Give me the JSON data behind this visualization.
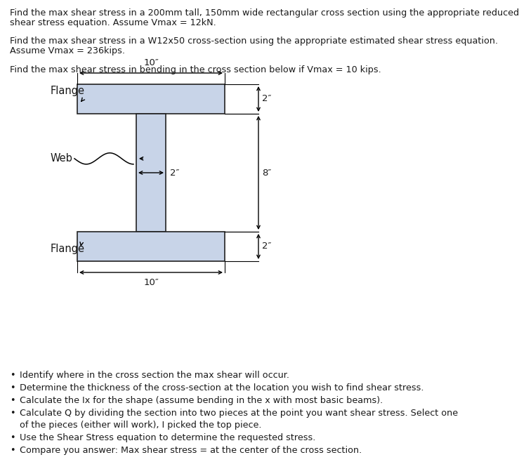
{
  "title_text1": "Find the max shear stress in a 200mm tall, 150mm wide rectangular cross section using the appropriate reduced",
  "title_text2": "shear stress equation. Assume Vmax = 12kN.",
  "para2_text1": "Find the max shear stress in a W12x50 cross-section using the appropriate estimated shear stress equation.",
  "para2_text2": "Assume Vmax = 236kips.",
  "para3_text": "Find the max shear stress in bending in the cross section below if Vmax = 10 kips.",
  "bullet_points": [
    "Identify where in the cross section the max shear will occur.",
    "Determine the thickness of the cross-section at the location you wish to find shear stress.",
    "Calculate the Ix for the shape (assume bending in the x with most basic beams).",
    "Calculate Q by dividing the section into two pieces at the point you want shear stress. Select one of the pieces (either will work), I picked the top piece.",
    "Use the Shear Stress equation to determine the requested stress.",
    "Compare you answer: Max shear stress = at the center of the cross section."
  ],
  "bg_color": "#ffffff",
  "text_color": "#1a1a1a",
  "shape_fill": "#c8d4e8",
  "shape_edge": "#222222",
  "font_size": 9.2,
  "dim_font_size": 9.5,
  "label_font_size": 10.5
}
